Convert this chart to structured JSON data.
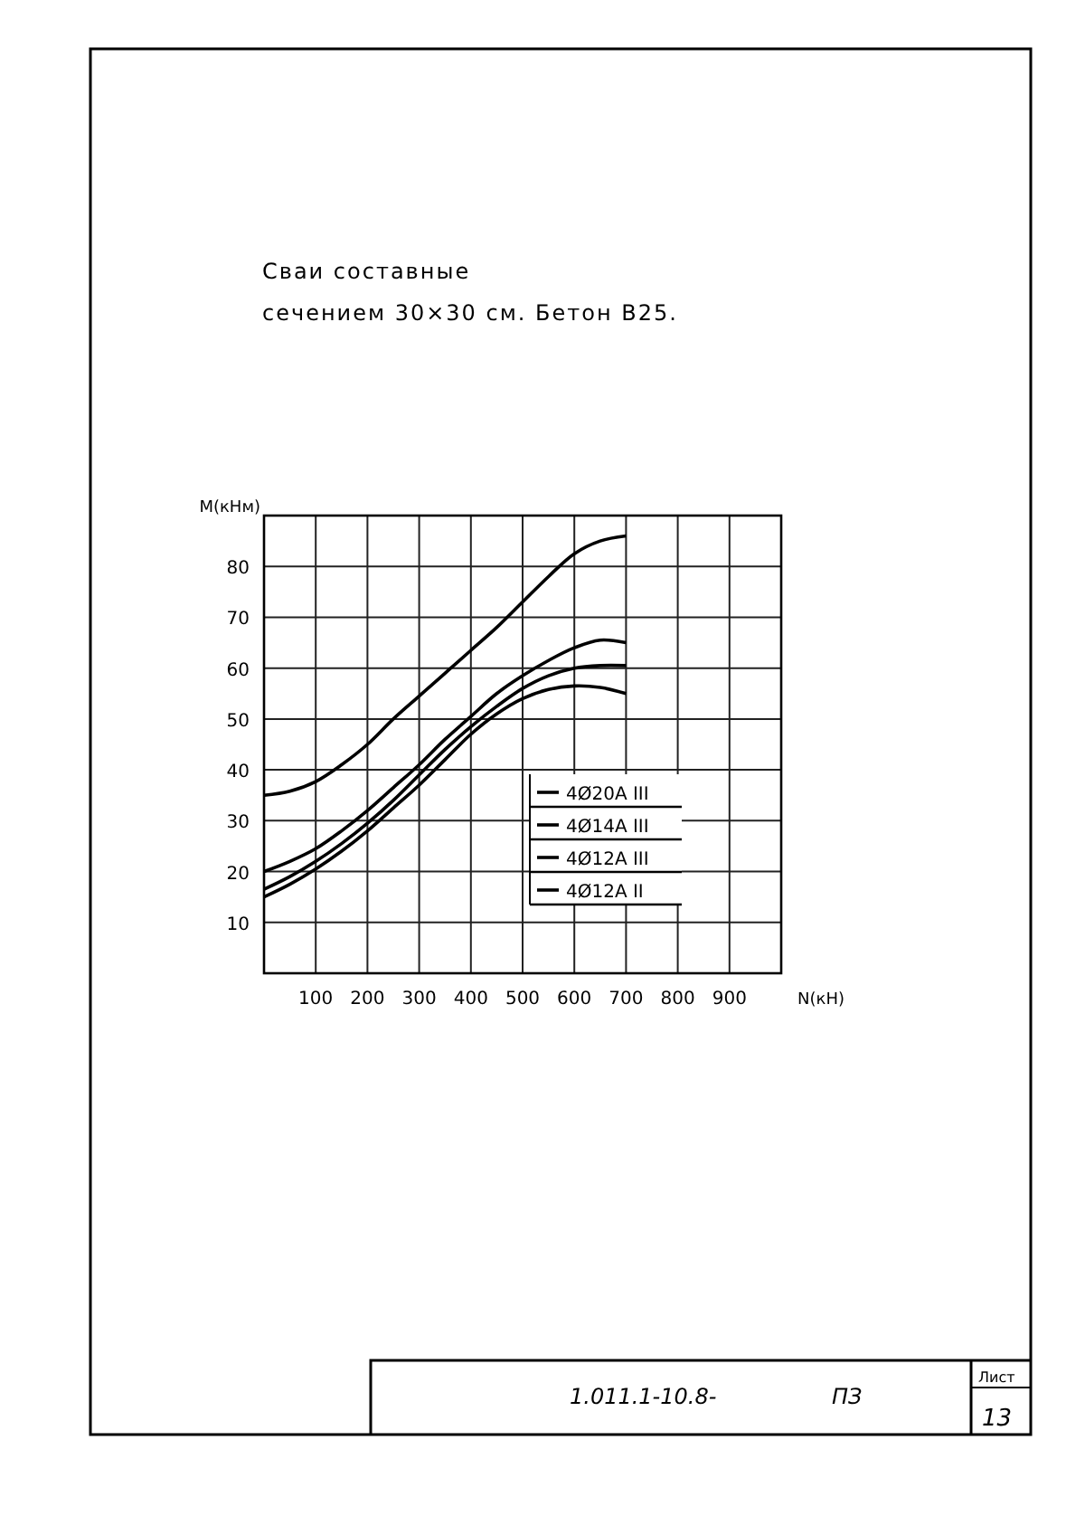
{
  "chart_data": {
    "type": "line",
    "title": "Сваи составные",
    "subtitle": "сечением 30×30 см. Бетон В25.",
    "xlabel": "N(кН)",
    "ylabel": "M(кНм)",
    "xlim": [
      0,
      1000
    ],
    "ylim": [
      0,
      90
    ],
    "xticks": [
      {
        "value": 0,
        "label": null
      },
      100,
      200,
      300,
      400,
      500,
      600,
      700,
      800,
      900,
      {
        "value": 1000,
        "label": null
      }
    ],
    "yticks": [
      {
        "value": 0,
        "label": null
      },
      10,
      20,
      30,
      40,
      50,
      60,
      70,
      80,
      {
        "value": 90,
        "label": null
      }
    ],
    "x": [
      0,
      50,
      100,
      150,
      200,
      250,
      300,
      350,
      400,
      450,
      500,
      550,
      600,
      650,
      700
    ],
    "grid": true,
    "marker": "none",
    "line_style": "solid",
    "legend": "right",
    "series": [
      {
        "name": "4Ø20A III",
        "color": "#000000",
        "values": [
          35,
          35.8,
          37.7,
          41,
          45,
          50,
          54.5,
          59,
          63.5,
          68,
          73,
          78,
          82.5,
          85,
          86
        ]
      },
      {
        "name": "4Ø14A III",
        "color": "#000000",
        "values": [
          20,
          22,
          24.5,
          28,
          32,
          36.5,
          41,
          46,
          50.5,
          55,
          58.5,
          61.5,
          64,
          65.5,
          65
        ]
      },
      {
        "name": "4Ø12A III",
        "color": "#000000",
        "values": [
          16.5,
          19,
          22,
          25.5,
          29.5,
          34,
          39,
          44,
          48.5,
          52.5,
          56,
          58.5,
          60,
          60.5,
          60.5
        ]
      },
      {
        "name": "4Ø12A II",
        "color": "#000000",
        "values": [
          15,
          17.5,
          20.5,
          24,
          28,
          32.5,
          37,
          42,
          47,
          51,
          54,
          55.8,
          56.5,
          56.2,
          55
        ]
      }
    ],
    "annotations": [
      "1.011.1-10.8-",
      "ПЗ",
      "Лист",
      "13"
    ]
  }
}
